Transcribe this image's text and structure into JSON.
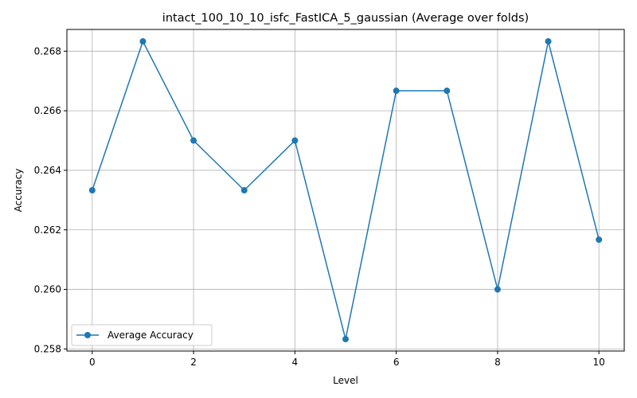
{
  "chart_data": {
    "type": "line",
    "title": "intact_100_10_10_isfc_FastICA_5_gaussian (Average over folds)",
    "xlabel": "Level",
    "ylabel": "Accuracy",
    "x": [
      0,
      1,
      2,
      3,
      4,
      5,
      6,
      7,
      8,
      9,
      10
    ],
    "series": [
      {
        "name": "Average Accuracy",
        "values": [
          0.26333,
          0.26833,
          0.265,
          0.26333,
          0.265,
          0.25833,
          0.26667,
          0.26667,
          0.26,
          0.26833,
          0.26167
        ],
        "color": "#1f77b4",
        "marker": "circle"
      }
    ],
    "xlim": [
      -0.5,
      10.5
    ],
    "ylim": [
      0.25793,
      0.26873
    ],
    "xticks": [
      0,
      2,
      4,
      6,
      8,
      10
    ],
    "xtick_labels": [
      "0",
      "2",
      "4",
      "6",
      "8",
      "10"
    ],
    "yticks": [
      0.258,
      0.26,
      0.262,
      0.264,
      0.266,
      0.268
    ],
    "ytick_labels": [
      "0.258",
      "0.260",
      "0.262",
      "0.264",
      "0.266",
      "0.268"
    ],
    "grid": true,
    "legend_position": "lower-left"
  }
}
